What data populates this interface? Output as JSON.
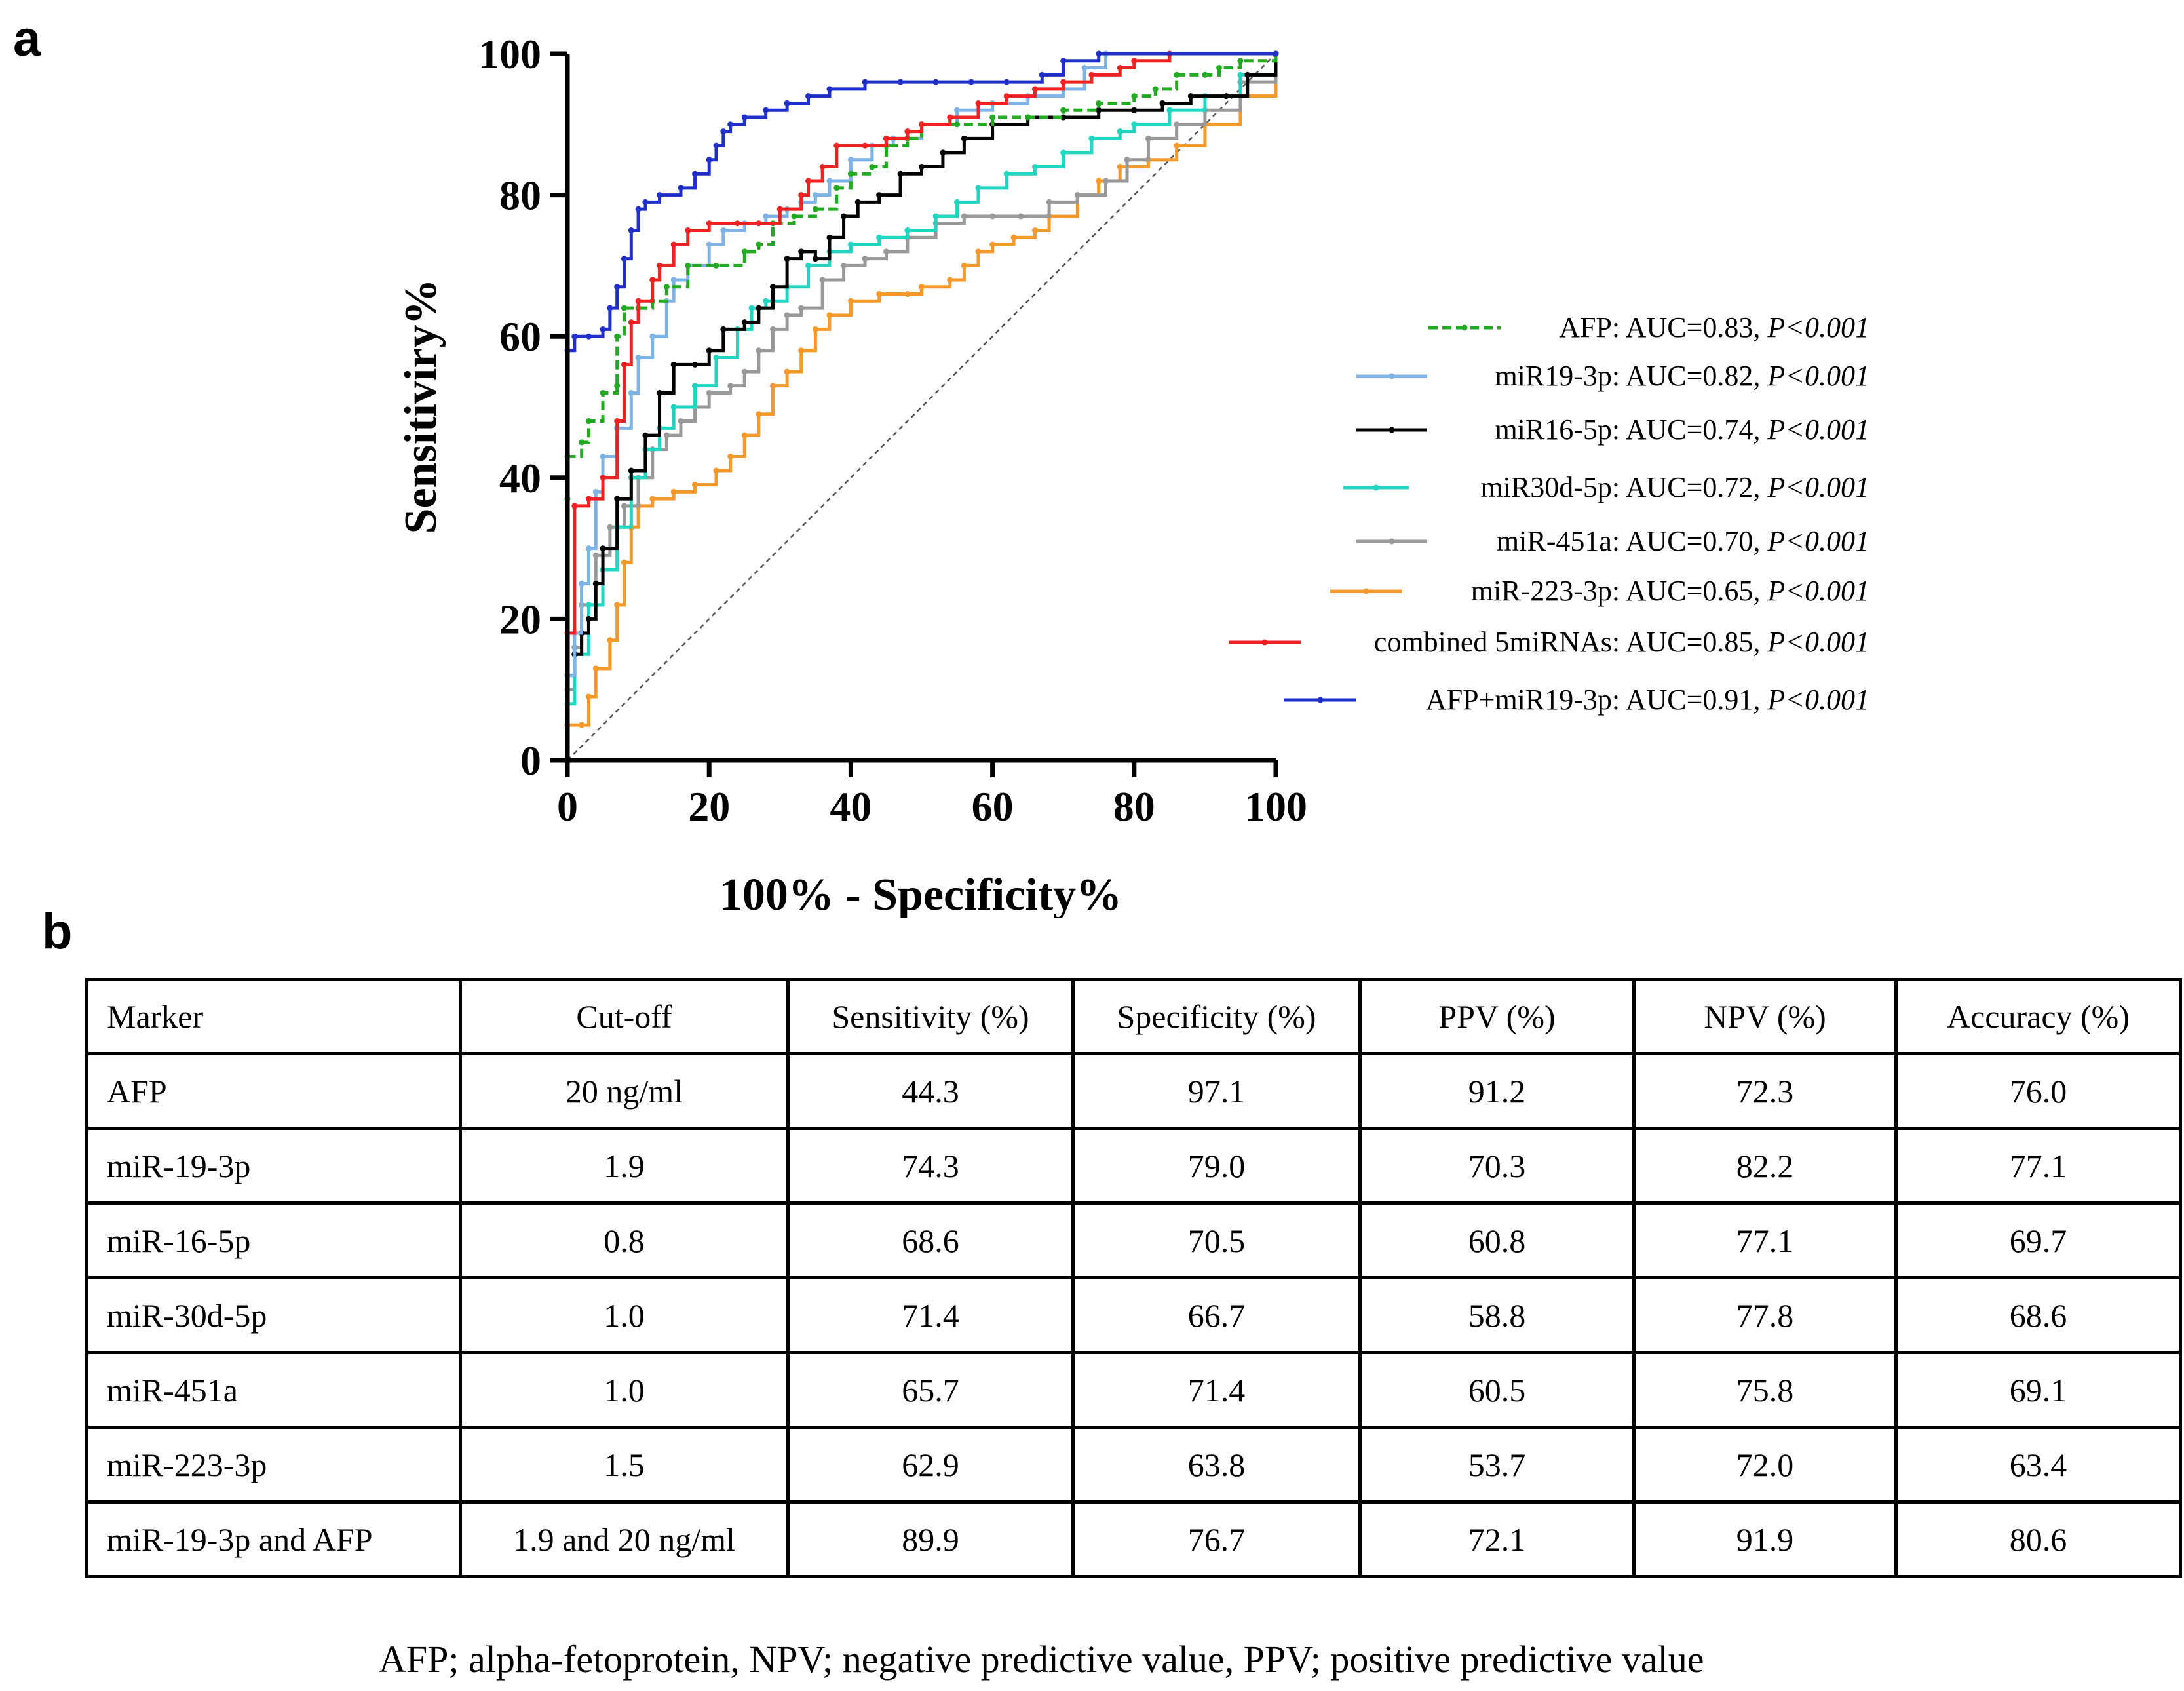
{
  "panel_labels": {
    "a": "a",
    "b": "b"
  },
  "chart_data": {
    "type": "line",
    "title": "",
    "xlabel": "100% - Specificity%",
    "ylabel": "Sensitiviry%",
    "xlim": [
      0,
      100
    ],
    "ylim": [
      0,
      100
    ],
    "xticks": [
      "0",
      "20",
      "40",
      "60",
      "80",
      "100"
    ],
    "yticks": [
      "0",
      "20",
      "40",
      "60",
      "80",
      "100"
    ],
    "grid": false,
    "legend_position": "right",
    "reference_line": {
      "style": "dashed",
      "x": [
        0,
        100
      ],
      "y": [
        0,
        100
      ]
    },
    "series": [
      {
        "name": "AFP",
        "legend_label": "AFP: AUC=0.83, ",
        "p_label": "P<0.001",
        "color": "#22aa22",
        "dash": true,
        "points": [
          [
            0,
            0
          ],
          [
            0,
            37
          ],
          [
            0,
            43
          ],
          [
            2,
            45
          ],
          [
            3,
            48
          ],
          [
            5,
            52
          ],
          [
            7,
            53
          ],
          [
            7,
            60
          ],
          [
            8,
            64
          ],
          [
            10,
            64
          ],
          [
            12,
            65
          ],
          [
            14,
            67
          ],
          [
            17,
            70
          ],
          [
            21,
            70
          ],
          [
            25,
            72
          ],
          [
            27,
            73
          ],
          [
            29,
            76
          ],
          [
            32,
            77
          ],
          [
            35,
            78
          ],
          [
            38,
            81
          ],
          [
            40,
            83
          ],
          [
            43,
            84
          ],
          [
            45,
            87
          ],
          [
            48,
            88
          ],
          [
            50,
            90
          ],
          [
            55,
            90
          ],
          [
            60,
            91
          ],
          [
            65,
            91
          ],
          [
            70,
            92
          ],
          [
            75,
            93
          ],
          [
            80,
            94
          ],
          [
            83,
            95
          ],
          [
            86,
            97
          ],
          [
            90,
            97
          ],
          [
            92,
            98
          ],
          [
            95,
            99
          ],
          [
            100,
            100
          ]
        ]
      },
      {
        "name": "miR19-3p",
        "legend_label": "miR19-3p: AUC=0.82, ",
        "p_label": "P<0.001",
        "color": "#7fb3e6",
        "dash": false,
        "points": [
          [
            0,
            0
          ],
          [
            0,
            12
          ],
          [
            1,
            18
          ],
          [
            2,
            25
          ],
          [
            3,
            30
          ],
          [
            4,
            38
          ],
          [
            5,
            43
          ],
          [
            7,
            47
          ],
          [
            9,
            52
          ],
          [
            10,
            57
          ],
          [
            12,
            60
          ],
          [
            14,
            65
          ],
          [
            15,
            68
          ],
          [
            17,
            70
          ],
          [
            20,
            73
          ],
          [
            22,
            75
          ],
          [
            25,
            76
          ],
          [
            28,
            77
          ],
          [
            31,
            78
          ],
          [
            33,
            79
          ],
          [
            35,
            80
          ],
          [
            37,
            82
          ],
          [
            40,
            85
          ],
          [
            43,
            87
          ],
          [
            46,
            88
          ],
          [
            50,
            90
          ],
          [
            55,
            92
          ],
          [
            60,
            93
          ],
          [
            65,
            94
          ],
          [
            70,
            95
          ],
          [
            73,
            98
          ],
          [
            76,
            100
          ],
          [
            85,
            100
          ],
          [
            100,
            100
          ]
        ]
      },
      {
        "name": "miR16-5p",
        "legend_label": "miR16-5p: AUC=0.74, ",
        "p_label": "P<0.001",
        "color": "#000000",
        "dash": false,
        "points": [
          [
            0,
            0
          ],
          [
            0,
            12
          ],
          [
            1,
            15
          ],
          [
            2,
            18
          ],
          [
            3,
            20
          ],
          [
            4,
            25
          ],
          [
            5,
            30
          ],
          [
            7,
            37
          ],
          [
            9,
            41
          ],
          [
            11,
            46
          ],
          [
            13,
            52
          ],
          [
            15,
            56
          ],
          [
            18,
            56
          ],
          [
            20,
            58
          ],
          [
            22,
            61
          ],
          [
            25,
            62
          ],
          [
            27,
            64
          ],
          [
            29,
            67
          ],
          [
            31,
            71
          ],
          [
            33,
            72
          ],
          [
            35,
            71
          ],
          [
            37,
            74
          ],
          [
            39,
            77
          ],
          [
            41,
            79
          ],
          [
            44,
            80
          ],
          [
            47,
            83
          ],
          [
            50,
            84
          ],
          [
            53,
            86
          ],
          [
            56,
            88
          ],
          [
            60,
            90
          ],
          [
            65,
            91
          ],
          [
            70,
            91
          ],
          [
            75,
            92
          ],
          [
            80,
            92
          ],
          [
            84,
            93
          ],
          [
            88,
            94
          ],
          [
            93,
            94
          ],
          [
            96,
            97
          ],
          [
            100,
            100
          ]
        ]
      },
      {
        "name": "miR30d-5p",
        "legend_label": "miR30d-5p: AUC=0.72, ",
        "p_label": "P<0.001",
        "color": "#20d6c0",
        "dash": false,
        "points": [
          [
            0,
            0
          ],
          [
            0,
            8
          ],
          [
            1,
            15
          ],
          [
            3,
            22
          ],
          [
            5,
            27
          ],
          [
            7,
            33
          ],
          [
            9,
            40
          ],
          [
            11,
            44
          ],
          [
            13,
            47
          ],
          [
            15,
            50
          ],
          [
            18,
            53
          ],
          [
            21,
            57
          ],
          [
            24,
            61
          ],
          [
            26,
            64
          ],
          [
            28,
            65
          ],
          [
            31,
            67
          ],
          [
            34,
            70
          ],
          [
            37,
            72
          ],
          [
            40,
            73
          ],
          [
            44,
            74
          ],
          [
            48,
            75
          ],
          [
            52,
            77
          ],
          [
            55,
            79
          ],
          [
            58,
            81
          ],
          [
            62,
            83
          ],
          [
            66,
            84
          ],
          [
            70,
            86
          ],
          [
            74,
            88
          ],
          [
            78,
            89
          ],
          [
            80,
            90
          ],
          [
            85,
            92
          ],
          [
            90,
            94
          ],
          [
            95,
            97
          ],
          [
            100,
            100
          ]
        ]
      },
      {
        "name": "miR-451a",
        "legend_label": "miR-451a: AUC=0.70, ",
        "p_label": "P<0.001",
        "color": "#999999",
        "dash": false,
        "points": [
          [
            0,
            0
          ],
          [
            0,
            10
          ],
          [
            1,
            16
          ],
          [
            2,
            22
          ],
          [
            4,
            29
          ],
          [
            6,
            33
          ],
          [
            8,
            36
          ],
          [
            10,
            40
          ],
          [
            12,
            44
          ],
          [
            14,
            46
          ],
          [
            16,
            48
          ],
          [
            18,
            50
          ],
          [
            20,
            52
          ],
          [
            23,
            53
          ],
          [
            25,
            55
          ],
          [
            27,
            58
          ],
          [
            29,
            61
          ],
          [
            31,
            63
          ],
          [
            33,
            64
          ],
          [
            36,
            68
          ],
          [
            39,
            70
          ],
          [
            42,
            71
          ],
          [
            45,
            72
          ],
          [
            48,
            74
          ],
          [
            52,
            76
          ],
          [
            56,
            77
          ],
          [
            60,
            77
          ],
          [
            64,
            77
          ],
          [
            68,
            79
          ],
          [
            72,
            80
          ],
          [
            76,
            82
          ],
          [
            79,
            85
          ],
          [
            82,
            88
          ],
          [
            86,
            90
          ],
          [
            90,
            92
          ],
          [
            95,
            96
          ],
          [
            100,
            100
          ]
        ]
      },
      {
        "name": "miR-223-3p",
        "legend_label": "miR-223-3p: AUC=0.65, ",
        "p_label": "P<0.001",
        "color": "#f59a2a",
        "dash": false,
        "points": [
          [
            0,
            0
          ],
          [
            0,
            5
          ],
          [
            2,
            5
          ],
          [
            3,
            9
          ],
          [
            4,
            13
          ],
          [
            6,
            17
          ],
          [
            7,
            22
          ],
          [
            8,
            28
          ],
          [
            9,
            33
          ],
          [
            10,
            36
          ],
          [
            12,
            37
          ],
          [
            15,
            38
          ],
          [
            18,
            39
          ],
          [
            21,
            41
          ],
          [
            23,
            43
          ],
          [
            25,
            46
          ],
          [
            27,
            49
          ],
          [
            29,
            53
          ],
          [
            31,
            55
          ],
          [
            33,
            58
          ],
          [
            35,
            61
          ],
          [
            37,
            63
          ],
          [
            40,
            65
          ],
          [
            44,
            66
          ],
          [
            48,
            66
          ],
          [
            50,
            67
          ],
          [
            54,
            68
          ],
          [
            56,
            70
          ],
          [
            58,
            72
          ],
          [
            60,
            73
          ],
          [
            63,
            74
          ],
          [
            66,
            75
          ],
          [
            68,
            77
          ],
          [
            72,
            80
          ],
          [
            75,
            82
          ],
          [
            78,
            84
          ],
          [
            82,
            85
          ],
          [
            86,
            87
          ],
          [
            90,
            90
          ],
          [
            95,
            94
          ],
          [
            100,
            100
          ]
        ]
      },
      {
        "name": "combined 5miRNAs",
        "legend_label": "combined 5miRNAs: AUC=0.85, ",
        "p_label": "P<0.001",
        "color": "#ee2222",
        "dash": false,
        "points": [
          [
            0,
            0
          ],
          [
            0,
            18
          ],
          [
            1,
            36
          ],
          [
            3,
            37
          ],
          [
            5,
            40
          ],
          [
            7,
            48
          ],
          [
            8,
            56
          ],
          [
            9,
            62
          ],
          [
            10,
            65
          ],
          [
            12,
            68
          ],
          [
            13,
            70
          ],
          [
            15,
            73
          ],
          [
            17,
            75
          ],
          [
            20,
            76
          ],
          [
            24,
            76
          ],
          [
            27,
            76
          ],
          [
            30,
            78
          ],
          [
            33,
            80
          ],
          [
            34,
            82
          ],
          [
            36,
            84
          ],
          [
            38,
            87
          ],
          [
            42,
            87
          ],
          [
            45,
            88
          ],
          [
            48,
            89
          ],
          [
            50,
            90
          ],
          [
            54,
            91
          ],
          [
            58,
            93
          ],
          [
            62,
            94
          ],
          [
            66,
            95
          ],
          [
            70,
            96
          ],
          [
            74,
            97
          ],
          [
            78,
            98
          ],
          [
            80,
            99
          ],
          [
            85,
            100
          ],
          [
            100,
            100
          ]
        ]
      },
      {
        "name": "AFP+miR19-3p",
        "legend_label": "AFP+miR19-3p: AUC=0.91, ",
        "p_label": "P<0.001",
        "color": "#1f2fc8",
        "dash": false,
        "points": [
          [
            0,
            0
          ],
          [
            0,
            58
          ],
          [
            1,
            60
          ],
          [
            3,
            60
          ],
          [
            5,
            61
          ],
          [
            6,
            64
          ],
          [
            7,
            67
          ],
          [
            8,
            71
          ],
          [
            9,
            75
          ],
          [
            10,
            78
          ],
          [
            11,
            79
          ],
          [
            13,
            80
          ],
          [
            16,
            81
          ],
          [
            18,
            83
          ],
          [
            20,
            85
          ],
          [
            21,
            87
          ],
          [
            22,
            89
          ],
          [
            23,
            90
          ],
          [
            25,
            91
          ],
          [
            28,
            92
          ],
          [
            31,
            93
          ],
          [
            34,
            94
          ],
          [
            37,
            95
          ],
          [
            42,
            96
          ],
          [
            47,
            96
          ],
          [
            52,
            96
          ],
          [
            57,
            96
          ],
          [
            62,
            96
          ],
          [
            67,
            97
          ],
          [
            70,
            99
          ],
          [
            75,
            100
          ],
          [
            100,
            100
          ]
        ]
      }
    ]
  },
  "table": {
    "headers": [
      "Marker",
      "Cut-off",
      "Sensitivity (%)",
      "Specificity (%)",
      "PPV (%)",
      "NPV (%)",
      "Accuracy (%)"
    ],
    "rows": [
      [
        "AFP",
        "20 ng/ml",
        "44.3",
        "97.1",
        "91.2",
        "72.3",
        "76.0"
      ],
      [
        "miR-19-3p",
        "1.9",
        "74.3",
        "79.0",
        "70.3",
        "82.2",
        "77.1"
      ],
      [
        "miR-16-5p",
        "0.8",
        "68.6",
        "70.5",
        "60.8",
        "77.1",
        "69.7"
      ],
      [
        "miR-30d-5p",
        "1.0",
        "71.4",
        "66.7",
        "58.8",
        "77.8",
        "68.6"
      ],
      [
        "miR-451a",
        "1.0",
        "65.7",
        "71.4",
        "60.5",
        "75.8",
        "69.1"
      ],
      [
        "miR-223-3p",
        "1.5",
        "62.9",
        "63.8",
        "53.7",
        "72.0",
        "63.4"
      ],
      [
        "miR-19-3p and AFP",
        "1.9 and 20 ng/ml",
        "89.9",
        "76.7",
        "72.1",
        "91.9",
        "80.6"
      ]
    ]
  },
  "footnote": "AFP; alpha-fetoprotein, NPV; negative predictive value, PPV; positive predictive value"
}
